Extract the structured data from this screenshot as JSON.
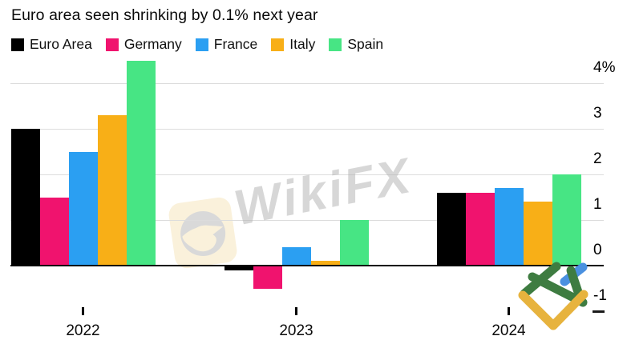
{
  "title": "Euro area seen shrinking by 0.1% next year",
  "watermark": {
    "text": "WikiFX"
  },
  "chart_data": {
    "type": "bar",
    "title": "Euro area seen shrinking by 0.1% next year",
    "categories": [
      "2022",
      "2023",
      "2024"
    ],
    "series": [
      {
        "name": "Euro Area",
        "color": "#000000",
        "values": [
          3.0,
          -0.1,
          1.6
        ]
      },
      {
        "name": "Germany",
        "color": "#F0136E",
        "values": [
          1.5,
          -0.5,
          1.6
        ]
      },
      {
        "name": "France",
        "color": "#2B9FF2",
        "values": [
          2.5,
          0.4,
          1.7
        ]
      },
      {
        "name": "Italy",
        "color": "#F8AF17",
        "values": [
          3.3,
          0.1,
          1.4
        ]
      },
      {
        "name": "Spain",
        "color": "#47E584",
        "values": [
          4.5,
          1.0,
          2.0
        ]
      }
    ],
    "ylabel": "%",
    "ylim": [
      -1,
      4.5
    ],
    "yticks": [
      {
        "label": "4%",
        "value": 4
      },
      {
        "label": "3",
        "value": 3
      },
      {
        "label": "2",
        "value": 2
      },
      {
        "label": "1",
        "value": 1
      },
      {
        "label": "0",
        "value": 0
      },
      {
        "label": "-1",
        "value": -1
      }
    ],
    "grid": "horizontal",
    "legend_position": "top"
  }
}
